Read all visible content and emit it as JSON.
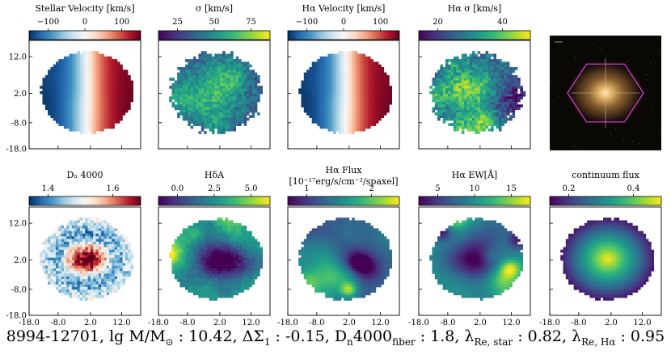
{
  "panels_top": [
    {
      "title": "Stellar Velocity [km/s]",
      "cmap": "rdbu",
      "cticks": [
        "−100",
        "0",
        "100"
      ],
      "map": "velocity"
    },
    {
      "title": "σ [km/s]",
      "cmap": "viridis",
      "cticks": [
        "25",
        "50",
        "75"
      ],
      "map": "sigma"
    },
    {
      "title": "Hα Velocity [km/s]",
      "cmap": "rdbu",
      "cticks": [
        "−100",
        "0",
        "100"
      ],
      "map": "velocity"
    },
    {
      "title": "Hα σ [km/s]",
      "cmap": "viridis",
      "cticks": [
        "20",
        "40"
      ],
      "map": "sigma2"
    },
    {
      "title": "",
      "cmap": "",
      "cticks": [],
      "map": "image"
    }
  ],
  "panels_bottom": [
    {
      "title": "Dₙ 4000",
      "cmap": "rdbu",
      "cticks": [
        "1.4",
        "1.6"
      ],
      "map": "dn4000"
    },
    {
      "title": "HδA",
      "cmap": "viridis",
      "cticks": [
        "0.0",
        "2.5",
        "5.0"
      ],
      "map": "hda"
    },
    {
      "title": "Hα Flux",
      "title2": "[10⁻¹⁷erg/s/cm⁻²/spaxel]",
      "cmap": "viridis",
      "cticks": [
        "1",
        "2"
      ],
      "map": "haflux"
    },
    {
      "title": "Hα EW[Å]",
      "cmap": "viridis",
      "cticks": [
        "5",
        "10",
        "15"
      ],
      "map": "haew"
    },
    {
      "title": "continuum flux",
      "cmap": "viridis",
      "cticks": [
        "0.2",
        "0.4"
      ],
      "map": "continuum"
    }
  ],
  "axis": {
    "y_ticks": [
      "12.0",
      "2.0",
      "-8.0",
      "-18.0"
    ],
    "x_ticks": [
      "-18.0",
      "-8.0",
      "2.0",
      "12.0"
    ]
  },
  "caption": {
    "plate_ifu": "8994-12701",
    "mass_label": "lg M/M",
    "mass_sym": "⊙",
    "mass_value": "10.42",
    "dsigma_label": "ΔΣ",
    "dsigma_sub": "1",
    "dsigma_value": "-0.15",
    "dn_label": "D",
    "dn_sub1": "n",
    "dn_mid": "4000",
    "dn_sub2": "fiber",
    "dn_value": "1.8",
    "lam_label": "λ",
    "lam1_sub": "Re, star",
    "lam1_value": "0.82",
    "lam2_sub": "Re, Hα",
    "lam2_value": "0.95"
  },
  "colors": {
    "rdbu": [
      "#053061",
      "#2166ac",
      "#4393c3",
      "#92c5de",
      "#d1e5f0",
      "#f7f7f7",
      "#fddbc7",
      "#f4a582",
      "#d6604d",
      "#b2182b",
      "#67001f"
    ],
    "viridis": [
      "#440154",
      "#482878",
      "#3e4989",
      "#31688e",
      "#26828e",
      "#1f9e89",
      "#35b779",
      "#6ece58",
      "#b5de2b",
      "#fde725"
    ],
    "hexagon": "#e040e0"
  }
}
